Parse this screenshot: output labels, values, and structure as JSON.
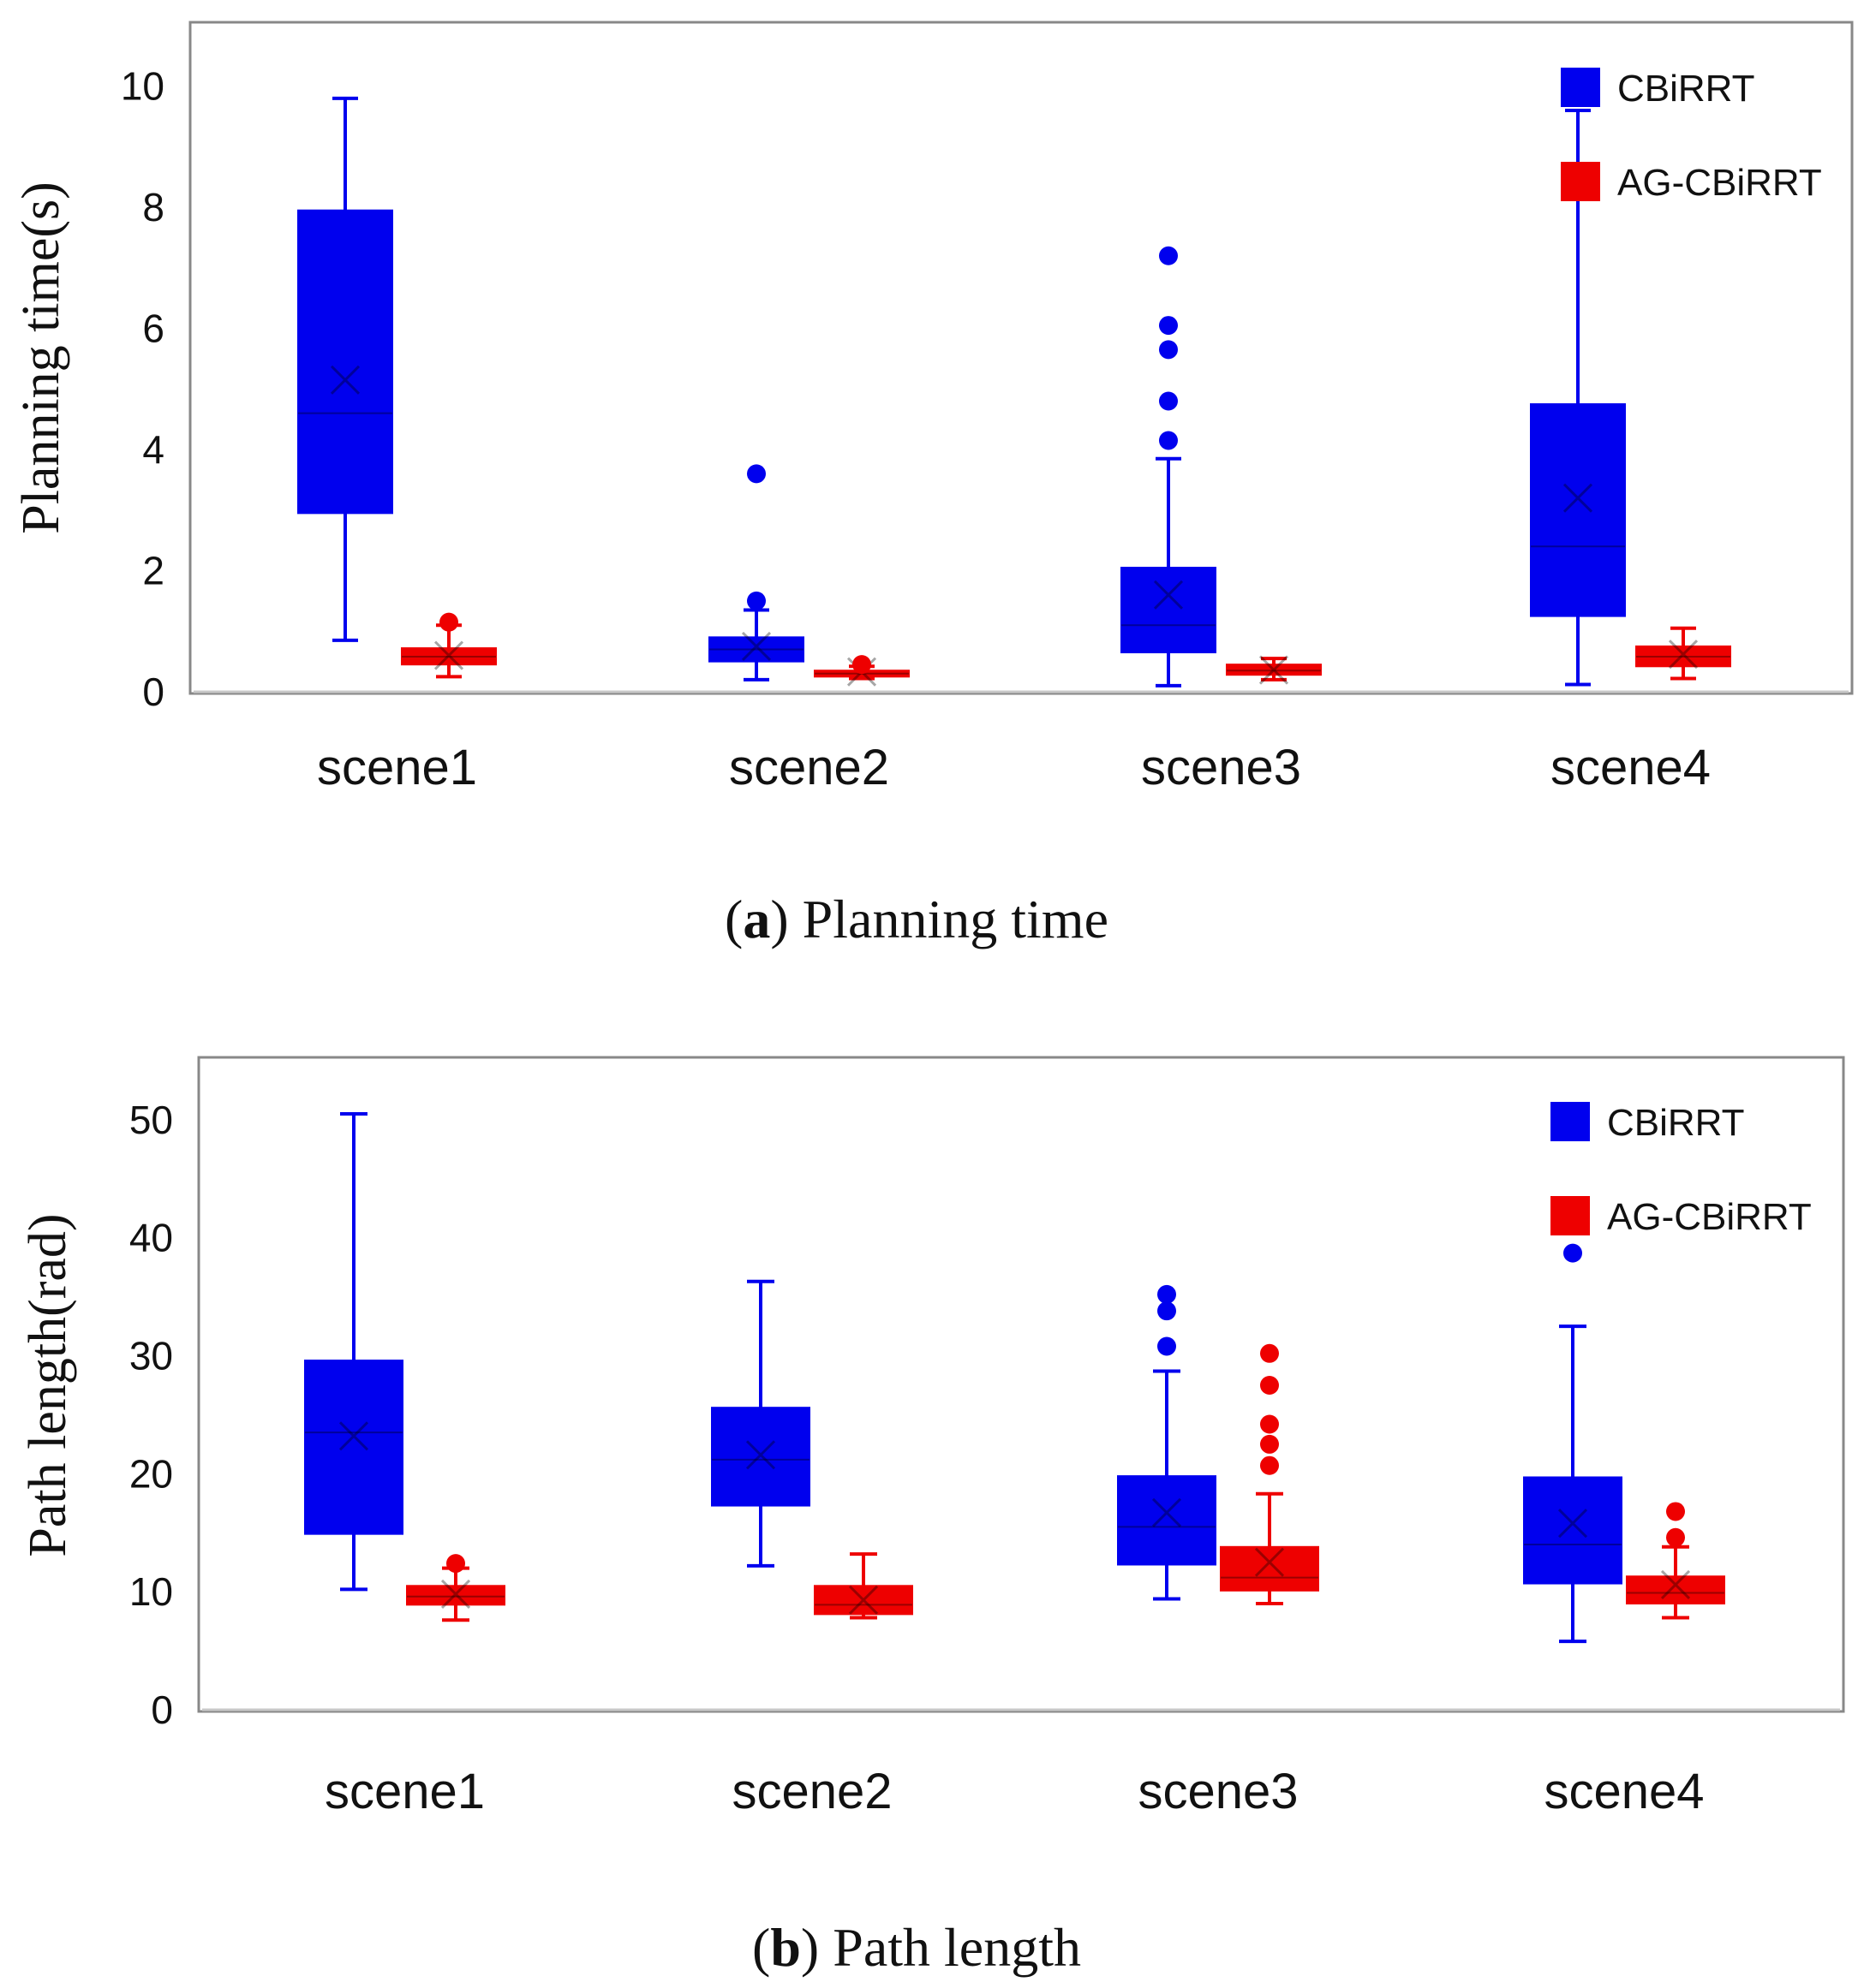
{
  "chart_data": [
    {
      "type": "box",
      "caption_letter": "a",
      "caption_text": "Planning time",
      "ylabel": "Planning time(s)",
      "xlabel": "",
      "ylim": [
        0,
        11
      ],
      "yticks": [
        0,
        2,
        4,
        6,
        8,
        10
      ],
      "categories": [
        "scene1",
        "scene2",
        "scene3",
        "scene4"
      ],
      "legend_position": "top-right",
      "series": [
        {
          "name": "CBiRRT",
          "color": "#0000ee",
          "boxes": [
            {
              "min": 0.85,
              "q1": 2.95,
              "median": 4.6,
              "q3": 7.95,
              "max": 9.8,
              "mean": 5.15,
              "outliers": []
            },
            {
              "min": 0.2,
              "q1": 0.5,
              "median": 0.7,
              "q3": 0.9,
              "max": 1.35,
              "mean": 0.75,
              "outliers": [
                1.5,
                3.6
              ]
            },
            {
              "min": 0.1,
              "q1": 0.65,
              "median": 1.1,
              "q3": 2.05,
              "max": 3.85,
              "mean": 1.6,
              "outliers": [
                4.15,
                4.8,
                5.65,
                6.05,
                7.2
              ]
            },
            {
              "min": 0.12,
              "q1": 1.25,
              "median": 2.4,
              "q3": 4.75,
              "max": 9.6,
              "mean": 3.2,
              "outliers": []
            }
          ]
        },
        {
          "name": "AG-CBiRRT",
          "color": "#ee0000",
          "boxes": [
            {
              "min": 0.25,
              "q1": 0.45,
              "median": 0.58,
              "q3": 0.72,
              "max": 1.1,
              "mean": 0.6,
              "outliers": [
                1.15
              ]
            },
            {
              "min": 0.22,
              "q1": 0.25,
              "median": 0.3,
              "q3": 0.35,
              "max": 0.42,
              "mean": 0.33,
              "outliers": [
                0.45
              ]
            },
            {
              "min": 0.2,
              "q1": 0.28,
              "median": 0.35,
              "q3": 0.45,
              "max": 0.55,
              "mean": 0.36,
              "outliers": []
            },
            {
              "min": 0.22,
              "q1": 0.42,
              "median": 0.58,
              "q3": 0.75,
              "max": 1.05,
              "mean": 0.62,
              "outliers": []
            }
          ]
        }
      ]
    },
    {
      "type": "box",
      "caption_letter": "b",
      "caption_text": "Path length",
      "ylabel": "Path length(rad)",
      "xlabel": "",
      "ylim": [
        0,
        55
      ],
      "yticks": [
        0,
        10,
        20,
        30,
        40,
        50
      ],
      "categories": [
        "scene1",
        "scene2",
        "scene3",
        "scene4"
      ],
      "legend_position": "top-right",
      "series": [
        {
          "name": "CBiRRT",
          "color": "#0000ee",
          "boxes": [
            {
              "min": 10.2,
              "q1": 14.9,
              "median": 23.5,
              "q3": 29.6,
              "max": 50.5,
              "mean": 23.2,
              "outliers": []
            },
            {
              "min": 12.2,
              "q1": 17.3,
              "median": 21.2,
              "q3": 25.6,
              "max": 36.3,
              "mean": 21.6,
              "outliers": []
            },
            {
              "min": 9.4,
              "q1": 12.3,
              "median": 15.5,
              "q3": 19.8,
              "max": 28.7,
              "mean": 16.7,
              "outliers": [
                30.8,
                33.8,
                35.2
              ]
            },
            {
              "min": 5.8,
              "q1": 10.7,
              "median": 14.0,
              "q3": 19.7,
              "max": 32.5,
              "mean": 15.8,
              "outliers": [
                38.7
              ]
            }
          ]
        },
        {
          "name": "AG-CBiRRT",
          "color": "#ee0000",
          "boxes": [
            {
              "min": 7.6,
              "q1": 8.9,
              "median": 9.6,
              "q3": 10.5,
              "max": 12.0,
              "mean": 9.8,
              "outliers": [
                12.4
              ]
            },
            {
              "min": 7.8,
              "q1": 8.1,
              "median": 8.9,
              "q3": 10.5,
              "max": 13.2,
              "mean": 9.3,
              "outliers": []
            },
            {
              "min": 9.0,
              "q1": 10.1,
              "median": 11.2,
              "q3": 13.8,
              "max": 18.3,
              "mean": 12.5,
              "outliers": [
                20.7,
                22.5,
                24.2,
                27.5,
                30.2
              ]
            },
            {
              "min": 7.8,
              "q1": 9.0,
              "median": 9.9,
              "q3": 11.3,
              "max": 13.8,
              "mean": 10.6,
              "outliers": [
                14.6,
                16.8
              ]
            }
          ]
        }
      ]
    }
  ]
}
